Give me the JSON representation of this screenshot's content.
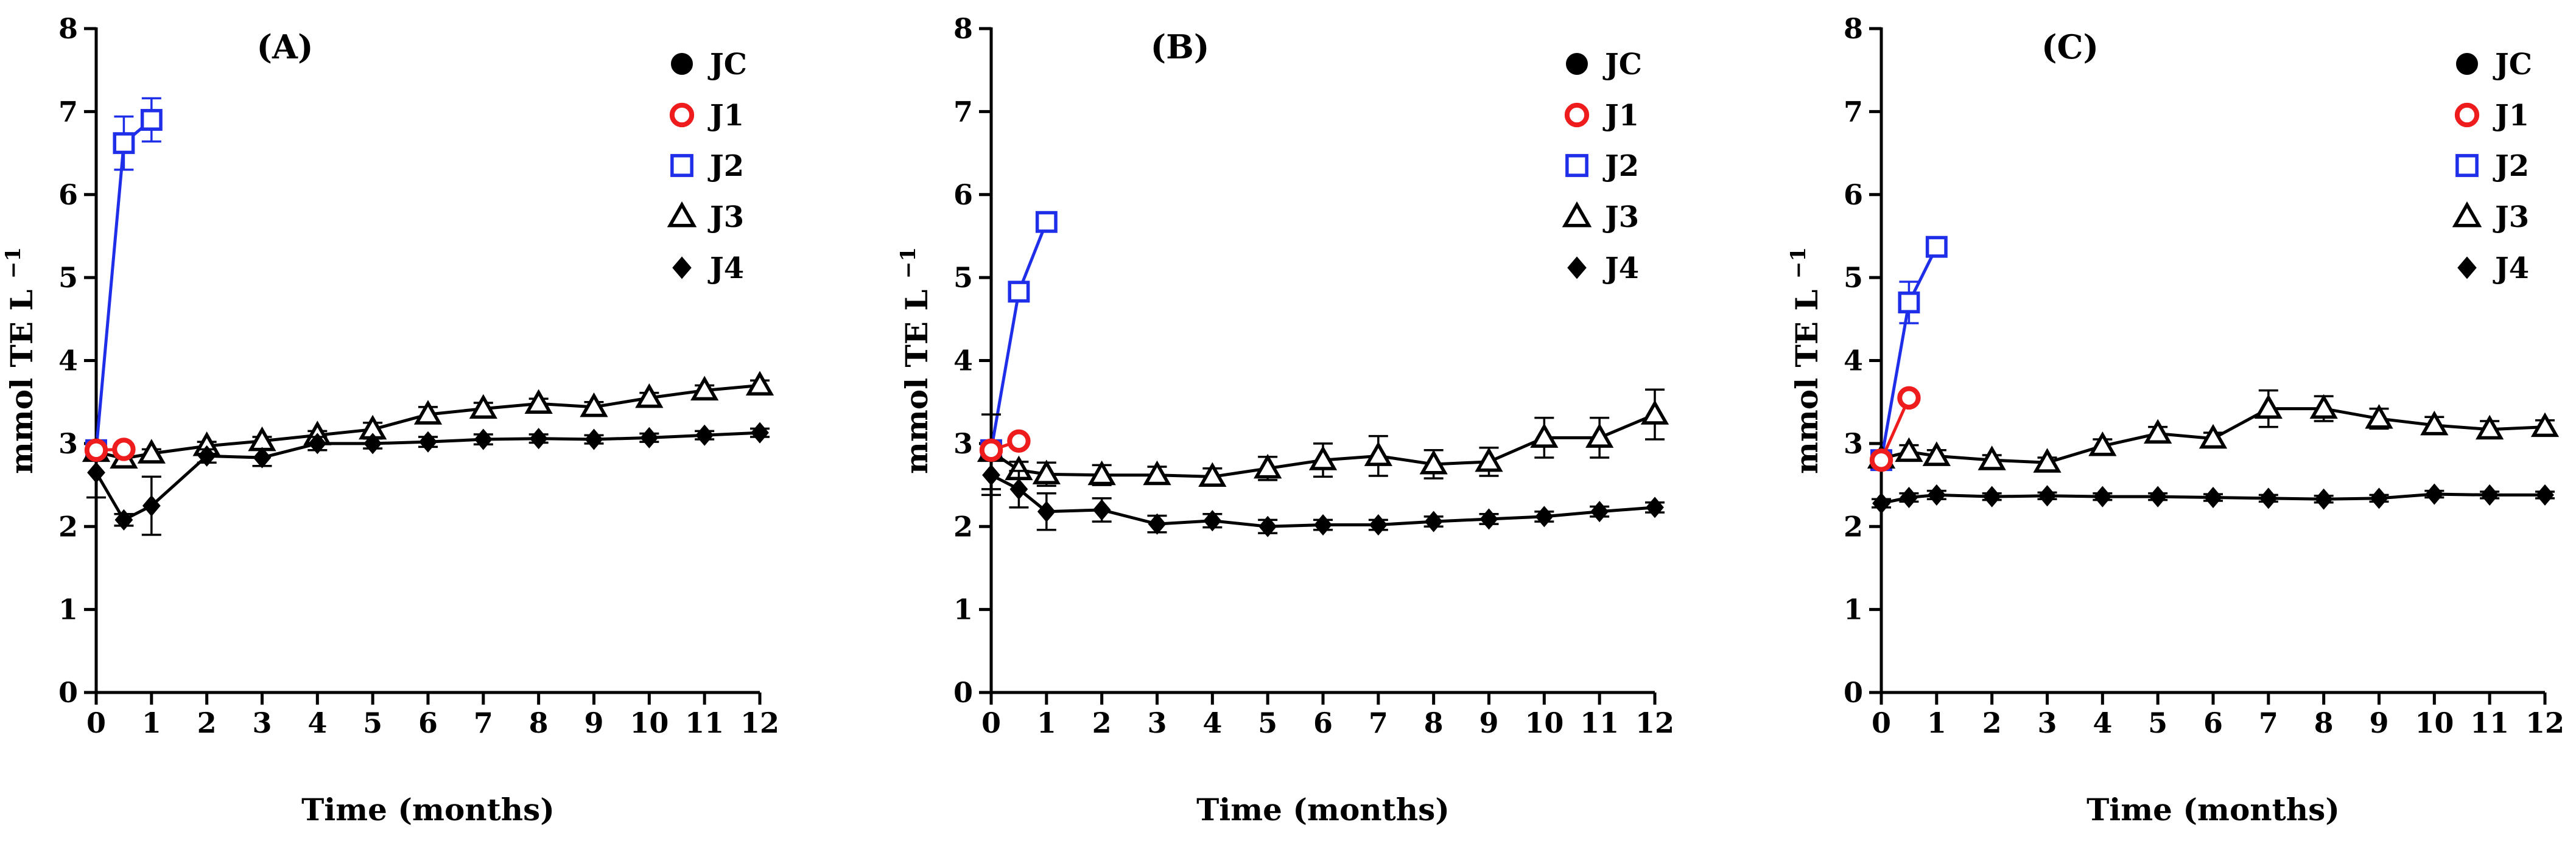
{
  "colors": {
    "JC": "#000000",
    "J1": "#ee1c1c",
    "J2": "#1f2ee8",
    "J3": "#000000",
    "J4": "#000000"
  },
  "chart_data": [
    {
      "type": "line",
      "title": "(A)",
      "xlabel": "Time (months)",
      "ylabel": "mmol TE L",
      "ylabel_sup": "−1",
      "xlim": [
        0,
        12
      ],
      "ylim": [
        0,
        8
      ],
      "xticks": [
        "0",
        "1",
        "2",
        "3",
        "4",
        "5",
        "6",
        "7",
        "8",
        "9",
        "10",
        "11",
        "12"
      ],
      "yticks": [
        "0",
        "1",
        "2",
        "3",
        "4",
        "5",
        "6",
        "7",
        "8"
      ],
      "legend": {
        "position": "top-right",
        "entries": [
          "JC",
          "J1",
          "J2",
          "J3",
          "J4"
        ]
      },
      "series": [
        {
          "name": "J2",
          "marker": "square-open",
          "color": "#1f2ee8",
          "x": [
            0,
            0.5,
            1
          ],
          "y": [
            2.92,
            6.62,
            6.9
          ],
          "err": [
            0.05,
            0.32,
            0.26
          ]
        },
        {
          "name": "J3",
          "marker": "triangle-open",
          "color": "#000000",
          "x": [
            0,
            0.5,
            1,
            2,
            3,
            4,
            5,
            6,
            7,
            8,
            9,
            10,
            11,
            12
          ],
          "y": [
            2.9,
            2.82,
            2.88,
            2.97,
            3.03,
            3.1,
            3.17,
            3.35,
            3.42,
            3.48,
            3.44,
            3.55,
            3.64,
            3.7
          ],
          "err": [
            0.04,
            0.05,
            0.05,
            0.05,
            0.05,
            0.05,
            0.08,
            0.09,
            0.07,
            0.06,
            0.06,
            0.06,
            0.06,
            0.06
          ]
        },
        {
          "name": "J4",
          "marker": "diamond-filled",
          "color": "#000000",
          "x": [
            0,
            0.5,
            1,
            2,
            3,
            4,
            5,
            6,
            7,
            8,
            9,
            10,
            11,
            12
          ],
          "y": [
            2.65,
            2.08,
            2.25,
            2.85,
            2.83,
            3.0,
            3.0,
            3.02,
            3.05,
            3.06,
            3.05,
            3.07,
            3.1,
            3.13
          ],
          "err": [
            0.3,
            0.07,
            0.35,
            0.08,
            0.1,
            0.08,
            0.06,
            0.06,
            0.06,
            0.05,
            0.05,
            0.05,
            0.05,
            0.05
          ]
        },
        {
          "name": "JC",
          "marker": "circle-filled",
          "color": "#000000",
          "x": [
            0
          ],
          "y": [
            2.9
          ],
          "err": [
            0.04
          ]
        },
        {
          "name": "J1",
          "marker": "circle-open",
          "color": "#ee1c1c",
          "x": [
            0,
            0.5
          ],
          "y": [
            2.92,
            2.93
          ],
          "err": [
            0.04,
            0.04
          ]
        }
      ]
    },
    {
      "type": "line",
      "title": "(B)",
      "xlabel": "Time (months)",
      "ylabel": "mmol TE L",
      "ylabel_sup": "−1",
      "xlim": [
        0,
        12
      ],
      "ylim": [
        0,
        8
      ],
      "xticks": [
        "0",
        "1",
        "2",
        "3",
        "4",
        "5",
        "6",
        "7",
        "8",
        "9",
        "10",
        "11",
        "12"
      ],
      "yticks": [
        "0",
        "1",
        "2",
        "3",
        "4",
        "5",
        "6",
        "7",
        "8"
      ],
      "legend": {
        "position": "top-right",
        "entries": [
          "JC",
          "J1",
          "J2",
          "J3",
          "J4"
        ]
      },
      "series": [
        {
          "name": "J2",
          "marker": "square-open",
          "color": "#1f2ee8",
          "x": [
            0,
            0.5,
            1
          ],
          "y": [
            2.92,
            4.83,
            5.67
          ],
          "err": [
            0.05,
            0.06,
            0.06
          ]
        },
        {
          "name": "J3",
          "marker": "triangle-open",
          "color": "#000000",
          "x": [
            0,
            0.5,
            1,
            2,
            3,
            4,
            5,
            6,
            7,
            8,
            9,
            10,
            11,
            12
          ],
          "y": [
            2.9,
            2.68,
            2.63,
            2.62,
            2.62,
            2.6,
            2.7,
            2.8,
            2.85,
            2.75,
            2.78,
            3.07,
            3.07,
            3.35
          ],
          "err": [
            0.45,
            0.1,
            0.14,
            0.12,
            0.1,
            0.1,
            0.14,
            0.2,
            0.24,
            0.17,
            0.17,
            0.24,
            0.24,
            0.3
          ]
        },
        {
          "name": "J4",
          "marker": "diamond-filled",
          "color": "#000000",
          "x": [
            0,
            0.5,
            1,
            2,
            3,
            4,
            5,
            6,
            7,
            8,
            9,
            10,
            11,
            12
          ],
          "y": [
            2.62,
            2.45,
            2.18,
            2.2,
            2.03,
            2.07,
            2.0,
            2.02,
            2.02,
            2.06,
            2.09,
            2.12,
            2.18,
            2.23
          ],
          "err": [
            0.24,
            0.22,
            0.22,
            0.14,
            0.1,
            0.08,
            0.08,
            0.06,
            0.06,
            0.06,
            0.06,
            0.06,
            0.06,
            0.06
          ]
        },
        {
          "name": "JC",
          "marker": "circle-filled",
          "color": "#000000",
          "x": [
            0
          ],
          "y": [
            2.9
          ],
          "err": [
            0.04
          ]
        },
        {
          "name": "J1",
          "marker": "circle-open",
          "color": "#ee1c1c",
          "x": [
            0,
            0.5
          ],
          "y": [
            2.92,
            3.03
          ],
          "err": [
            0.04,
            0.05
          ]
        }
      ]
    },
    {
      "type": "line",
      "title": "(C)",
      "xlabel": "Time (months)",
      "ylabel": "mmol TE L",
      "ylabel_sup": "−1",
      "xlim": [
        0,
        12
      ],
      "ylim": [
        0,
        8
      ],
      "xticks": [
        "0",
        "1",
        "2",
        "3",
        "4",
        "5",
        "6",
        "7",
        "8",
        "9",
        "10",
        "11",
        "12"
      ],
      "yticks": [
        "0",
        "1",
        "2",
        "3",
        "4",
        "5",
        "6",
        "7",
        "8"
      ],
      "legend": {
        "position": "top-right",
        "entries": [
          "JC",
          "J1",
          "J2",
          "J3",
          "J4"
        ]
      },
      "series": [
        {
          "name": "J2",
          "marker": "square-open",
          "color": "#1f2ee8",
          "x": [
            0,
            0.5,
            1
          ],
          "y": [
            2.8,
            4.7,
            5.37
          ],
          "err": [
            0.05,
            0.25,
            0.06
          ]
        },
        {
          "name": "J3",
          "marker": "triangle-open",
          "color": "#000000",
          "x": [
            0,
            0.5,
            1,
            2,
            3,
            4,
            5,
            6,
            7,
            8,
            9,
            10,
            11,
            12
          ],
          "y": [
            2.82,
            2.9,
            2.85,
            2.8,
            2.77,
            2.97,
            3.12,
            3.06,
            3.42,
            3.42,
            3.3,
            3.22,
            3.17,
            3.2
          ],
          "err": [
            0.05,
            0.08,
            0.07,
            0.06,
            0.06,
            0.08,
            0.08,
            0.07,
            0.22,
            0.15,
            0.12,
            0.1,
            0.1,
            0.08
          ]
        },
        {
          "name": "J4",
          "marker": "diamond-filled",
          "color": "#000000",
          "x": [
            0,
            0.5,
            1,
            2,
            3,
            4,
            5,
            6,
            7,
            8,
            9,
            10,
            11,
            12
          ],
          "y": [
            2.28,
            2.35,
            2.38,
            2.36,
            2.37,
            2.36,
            2.36,
            2.35,
            2.34,
            2.33,
            2.34,
            2.39,
            2.38,
            2.38
          ],
          "err": [
            0.05,
            0.05,
            0.05,
            0.04,
            0.04,
            0.04,
            0.04,
            0.04,
            0.04,
            0.04,
            0.04,
            0.04,
            0.04,
            0.04
          ]
        },
        {
          "name": "JC",
          "marker": "circle-filled",
          "color": "#000000",
          "x": [
            0
          ],
          "y": [
            2.8
          ],
          "err": [
            0.05
          ]
        },
        {
          "name": "J1",
          "marker": "circle-open",
          "color": "#ee1c1c",
          "x": [
            0,
            0.5
          ],
          "y": [
            2.8,
            3.55
          ],
          "err": [
            0.05,
            0.05
          ]
        }
      ]
    }
  ]
}
